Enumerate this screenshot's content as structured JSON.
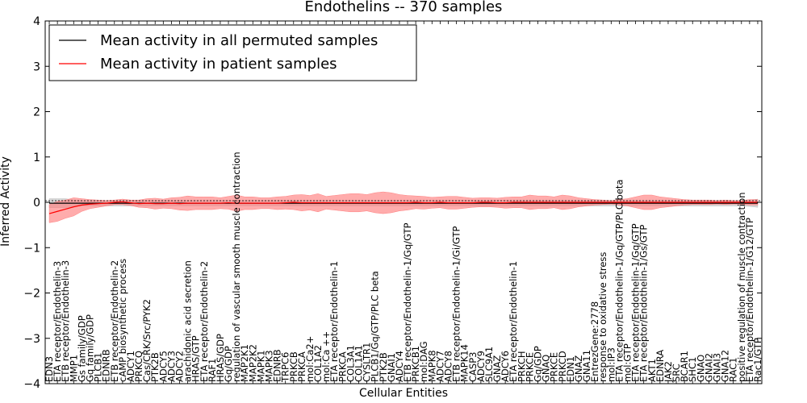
{
  "chart_data": {
    "type": "line",
    "title": "Endothelins -- 370 samples",
    "xlabel": "Cellular Entities",
    "ylabel": "Inferred Activity",
    "ylim": [
      -4,
      4
    ],
    "yticks": [
      -4,
      -3,
      -2,
      -1,
      0,
      1,
      2,
      3,
      4
    ],
    "ytick_labels": [
      "−4",
      "−3",
      "−2",
      "−1",
      "0",
      "1",
      "2",
      "3",
      "4"
    ],
    "grid": false,
    "legend_position": "top-left",
    "categories": [
      "EDN3",
      "ETA receptor/Endothelin-3",
      "ETB receptor/Endothelin-3",
      "MMP1",
      "Gs family/GDP",
      "Gq family/GDP",
      "PLCB1",
      "EDNRB",
      "ETB receptor/Endothelin-2",
      "cAMP biosynthetic process",
      "ADCY1",
      "PRKCQ",
      "Cas/CRK/Src/PYK2",
      "PTK2B",
      "ADCY5",
      "ADCY3",
      "ADCY2",
      "arachidonic acid secretion",
      "HRAS/GTP",
      "ETA receptor/Endothelin-2",
      "RAF1",
      "HRAS/GDP",
      "Gq/GDP",
      "regulation of vascular smooth muscle contraction",
      "MAP2K1",
      "MAP2K2",
      "MAPK1",
      "MAPK3",
      "EDNRB",
      "TRPC6",
      "PRKCB",
      "PRKCA",
      "mol:Ca2+",
      "COL1A2",
      "mol:Ca ++",
      "ETA receptor/Endothelin-1",
      "PRKCA",
      "COL3A1",
      "COL1A1",
      "CYSLTR1",
      "PLCB1/Gq/GTP/PLC beta",
      "PTK2B",
      "GNAI1",
      "ADCY4",
      "ETB receptor/Endothelin-1/Gq/GTP",
      "PRKCB1",
      "mol:DAG",
      "MAPK8",
      "ADCY7",
      "ADCY8",
      "ETB receptor/Endothelin-1/Gi/GTP",
      "MAPK14",
      "CASP3",
      "ADCY9",
      "SLC9A1",
      "GNAZ",
      "ADCY6",
      "ETA receptor/Endothelin-1",
      "PRKCH",
      "PRKCE",
      "Gq/GDP",
      "GNAQ",
      "PRKCE",
      "PRKCD",
      "EDN1",
      "GNAZ",
      "GNA11",
      "EntrezGene:2778",
      "response to oxidative stress",
      "mol:IP3",
      "ETA receptor/Endothelin-1/Gq/GTP/PLC beta",
      "mol:GTP",
      "ETA receptor/Endothelin-1/Gq/GTP",
      "ETA receptor/Endothelin-1/Gs/GTP",
      "AKT1",
      "EDNRA",
      "JAK2",
      "SRC",
      "BCAR1",
      "SHC1",
      "GNAO",
      "GNAI2",
      "GNAI3",
      "GNA12",
      "RAC1",
      "positive regulation of muscle contraction",
      "ETA receptor/Endothelin-1/G12/GTP",
      "Rac1/GTP"
    ],
    "series": [
      {
        "name": "Mean activity in all permuted samples",
        "color": "#000000",
        "band_color": "#bebebe",
        "values": [
          -0.02,
          -0.02,
          -0.02,
          -0.02,
          -0.02,
          -0.02,
          -0.02,
          -0.02,
          -0.02,
          -0.02,
          -0.02,
          -0.02,
          -0.02,
          -0.02,
          -0.02,
          -0.02,
          -0.02,
          -0.02,
          -0.02,
          -0.02,
          -0.02,
          -0.02,
          -0.02,
          -0.02,
          -0.02,
          -0.02,
          -0.02,
          -0.02,
          -0.02,
          -0.02,
          -0.02,
          -0.02,
          -0.02,
          -0.02,
          -0.02,
          -0.02,
          -0.02,
          -0.02,
          -0.02,
          -0.02,
          -0.02,
          -0.02,
          -0.02,
          -0.02,
          -0.02,
          -0.02,
          -0.02,
          -0.02,
          -0.02,
          -0.02,
          -0.02,
          -0.02,
          -0.02,
          -0.02,
          -0.02,
          -0.02,
          -0.02,
          -0.02,
          -0.02,
          -0.02,
          -0.02,
          -0.02,
          -0.02,
          -0.02,
          -0.02,
          -0.02,
          -0.02,
          -0.02,
          -0.02,
          -0.02,
          -0.02,
          -0.02,
          -0.02,
          -0.02,
          -0.02,
          -0.02,
          -0.02,
          -0.02,
          -0.02,
          -0.02,
          -0.02,
          -0.02,
          -0.02,
          -0.02,
          -0.02,
          -0.02,
          -0.02,
          -0.02
        ],
        "band": [
          0.1,
          0.1,
          0.1,
          0.07,
          0.06,
          0.06,
          0.06,
          0.06,
          0.06,
          0.06,
          0.06,
          0.06,
          0.06,
          0.06,
          0.06,
          0.06,
          0.06,
          0.06,
          0.06,
          0.06,
          0.06,
          0.06,
          0.06,
          0.06,
          0.06,
          0.06,
          0.06,
          0.06,
          0.06,
          0.06,
          0.06,
          0.06,
          0.06,
          0.06,
          0.06,
          0.06,
          0.06,
          0.06,
          0.06,
          0.06,
          0.06,
          0.06,
          0.06,
          0.06,
          0.06,
          0.06,
          0.06,
          0.06,
          0.06,
          0.06,
          0.06,
          0.06,
          0.06,
          0.06,
          0.06,
          0.06,
          0.06,
          0.06,
          0.06,
          0.06,
          0.06,
          0.06,
          0.06,
          0.06,
          0.06,
          0.06,
          0.06,
          0.06,
          0.06,
          0.06,
          0.06,
          0.06,
          0.06,
          0.06,
          0.06,
          0.06,
          0.06,
          0.06,
          0.06,
          0.06,
          0.06,
          0.06,
          0.06,
          0.06,
          0.06,
          0.06,
          0.07,
          0.09
        ]
      },
      {
        "name": "Mean activity in patient samples",
        "color": "#ff0000",
        "band_color": "#ff7f7f",
        "values": [
          -0.25,
          -0.2,
          -0.15,
          -0.1,
          -0.06,
          -0.04,
          -0.03,
          -0.02,
          0.0,
          0.01,
          -0.01,
          -0.03,
          -0.02,
          -0.03,
          -0.03,
          -0.02,
          -0.03,
          -0.02,
          -0.02,
          -0.02,
          -0.02,
          -0.02,
          -0.01,
          -0.02,
          -0.02,
          -0.02,
          -0.02,
          -0.02,
          -0.02,
          -0.01,
          0.0,
          -0.01,
          -0.01,
          -0.01,
          -0.01,
          -0.01,
          -0.01,
          -0.01,
          -0.01,
          -0.01,
          -0.01,
          -0.01,
          -0.01,
          -0.01,
          -0.01,
          0.0,
          -0.01,
          -0.01,
          0.0,
          -0.01,
          -0.01,
          -0.01,
          -0.01,
          0.0,
          0.0,
          -0.01,
          -0.01,
          0.0,
          0.0,
          0.0,
          0.0,
          0.0,
          0.0,
          0.0,
          0.0,
          0.0,
          0.0,
          0.0,
          0.0,
          0.0,
          0.0,
          0.0,
          0.0,
          0.0,
          0.0,
          0.0,
          0.0,
          0.0,
          0.0,
          0.0,
          0.0,
          0.0,
          0.0,
          0.0,
          0.0,
          0.0,
          0.0,
          0.0
        ],
        "band": [
          0.2,
          0.22,
          0.2,
          0.2,
          0.14,
          0.1,
          0.08,
          0.06,
          0.05,
          0.06,
          0.06,
          0.08,
          0.1,
          0.12,
          0.1,
          0.12,
          0.14,
          0.16,
          0.14,
          0.14,
          0.14,
          0.12,
          0.14,
          0.18,
          0.14,
          0.14,
          0.12,
          0.12,
          0.14,
          0.14,
          0.16,
          0.18,
          0.16,
          0.2,
          0.14,
          0.16,
          0.18,
          0.2,
          0.2,
          0.18,
          0.22,
          0.24,
          0.22,
          0.18,
          0.16,
          0.14,
          0.14,
          0.12,
          0.12,
          0.14,
          0.14,
          0.12,
          0.1,
          0.1,
          0.1,
          0.1,
          0.12,
          0.12,
          0.12,
          0.16,
          0.14,
          0.14,
          0.12,
          0.16,
          0.14,
          0.1,
          0.08,
          0.06,
          0.05,
          0.04,
          0.06,
          0.08,
          0.12,
          0.16,
          0.16,
          0.12,
          0.1,
          0.08,
          0.06,
          0.05,
          0.05,
          0.05,
          0.04,
          0.05,
          0.04,
          0.04,
          0.06,
          0.06
        ]
      }
    ]
  }
}
